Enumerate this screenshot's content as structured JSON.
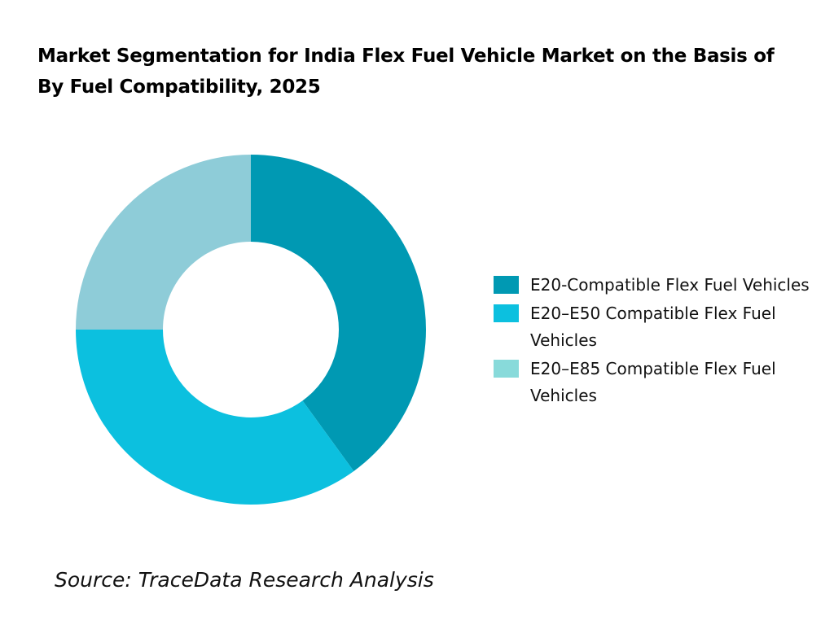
{
  "chart_data": {
    "type": "pie",
    "variant": "donut",
    "title": "Market Segmentation for India Flex Fuel Vehicle Market on the Basis of By Fuel Compatibility, 2025",
    "categories": [
      "E20-Compatible Flex Fuel Vehicles",
      "E20–E50 Compatible Flex Fuel Vehicles",
      "E20–E85 Compatible Flex Fuel Vehicles"
    ],
    "values": [
      40,
      35,
      25
    ],
    "unit": "%",
    "colors": [
      "#0099B3",
      "#0CC0DF",
      "#8ECCD8"
    ],
    "legend_colors": [
      "#0099B3",
      "#0CC0DF",
      "#88DADA"
    ],
    "legend_position": "right"
  },
  "source": "Source: TraceData Research Analysis"
}
